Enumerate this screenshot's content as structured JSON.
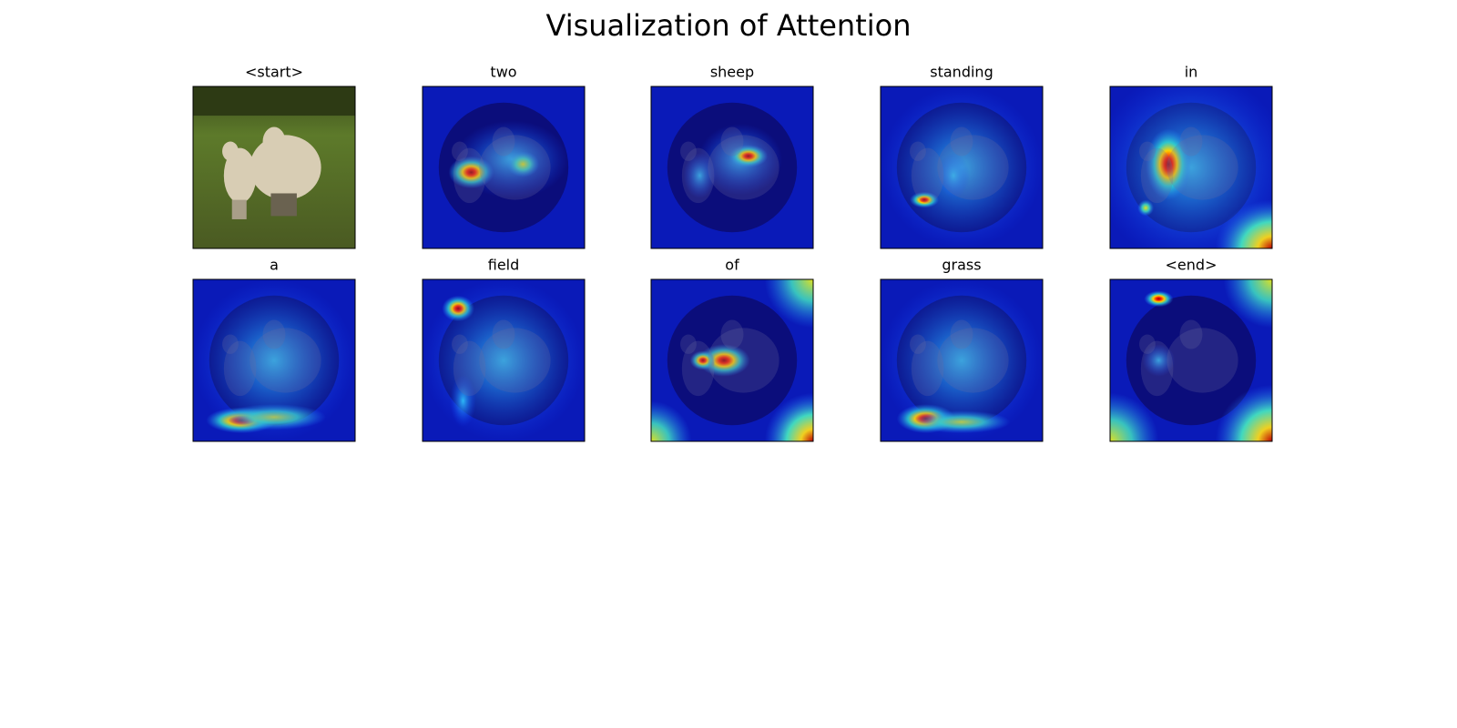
{
  "title": "Visualization of Attention",
  "panels": [
    "<start>",
    "two",
    "sheep",
    "standing",
    "in",
    "a",
    "field",
    "of",
    "grass",
    "<end>"
  ]
}
